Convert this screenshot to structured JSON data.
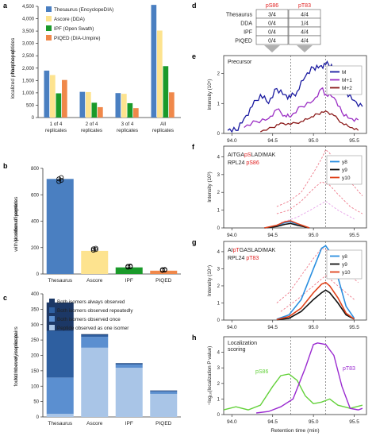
{
  "colors": {
    "thesaurus": "#4a7fc1",
    "ascore": "#fde38f",
    "ipf": "#1a9a2a",
    "piqed": "#f0884a",
    "c_always": "#1c3866",
    "c_repeated": "#2e5fa0",
    "c_once": "#5b8fd0",
    "c_one": "#a9c5e7",
    "m": "#1a1aa0",
    "m1": "#9b2fc4",
    "m2": "#8b1a1a",
    "y8": "#2b8fe0",
    "y9": "#111111",
    "y10": "#e0421b",
    "ps86": "#63d13a",
    "pt83": "#9a2ad0",
    "site_red": "#e02020"
  },
  "panels": {
    "a": "a",
    "b": "b",
    "c": "c",
    "d": "d",
    "e": "e",
    "f": "f",
    "g": "g",
    "h": "h"
  },
  "chart_data": [
    {
      "id": "a",
      "type": "bar",
      "ylabel": "Number of\nlocalized phosphopeptides",
      "ylim": [
        0,
        4500
      ],
      "yticks": [
        "0",
        "500",
        "1,000",
        "1,500",
        "2,000",
        "2,500",
        "3,000",
        "3,500",
        "4,000",
        "4,500"
      ],
      "categories": [
        "1 of 4\nreplicates",
        "2 of 4\nreplicates",
        "3 of 4\nreplicates",
        "All\nreplicates"
      ],
      "series": [
        {
          "name": "Thesaurus (EncyclopeDIA)",
          "values": [
            1900,
            1040,
            990,
            4560
          ]
        },
        {
          "name": "Ascore (DDA)",
          "values": [
            1720,
            1030,
            960,
            3520
          ]
        },
        {
          "name": "IPF (Open Swath)",
          "values": [
            980,
            600,
            580,
            2080
          ]
        },
        {
          "name": "PIQED (DIA-Umpire)",
          "values": [
            1520,
            420,
            380,
            1020
          ]
        }
      ],
      "legend": "top-left"
    },
    {
      "id": "b",
      "type": "bar",
      "ylabel": "Number of peptides\nwith positional isomers",
      "ylim": [
        0,
        800
      ],
      "yticks": [
        "0",
        "200",
        "400",
        "600",
        "800"
      ],
      "categories": [
        "Thesaurus",
        "Ascore",
        "IPF",
        "PIQED"
      ],
      "values": [
        720,
        175,
        50,
        25
      ],
      "points": [
        [
          700,
          710,
          720,
          730
        ],
        [
          180,
          185,
          190,
          195
        ],
        [
          52,
          55,
          58,
          60
        ],
        [
          28,
          30,
          32,
          34
        ]
      ]
    },
    {
      "id": "c",
      "type": "bar",
      "ylabel": "Number of isomer pairs\nfound in every replicate",
      "ylim": [
        0,
        400
      ],
      "yticks": [
        "0",
        "50",
        "100",
        "150",
        "200",
        "250",
        "300",
        "350",
        "400"
      ],
      "categories": [
        "Thesaurus",
        "Ascore",
        "IPF",
        "PIQED"
      ],
      "series": [
        {
          "name": "Peptide observed as one isomer",
          "values": [
            10,
            225,
            160,
            75
          ]
        },
        {
          "name": "Both isomers observed once",
          "values": [
            118,
            35,
            10,
            7
          ]
        },
        {
          "name": "Both isomers observed repeatedly",
          "values": [
            152,
            7,
            4,
            3
          ]
        },
        {
          "name": "Both isomers always observed",
          "values": [
            92,
            2,
            1,
            1
          ]
        }
      ],
      "legend": "top-left"
    },
    {
      "id": "d",
      "type": "table",
      "columns": [
        "pS86",
        "pT83"
      ],
      "rows": [
        {
          "label": "Thesaurus",
          "values": [
            "3/4",
            "4/4"
          ]
        },
        {
          "label": "DDA",
          "values": [
            "0/4",
            "1/4"
          ]
        },
        {
          "label": "IPF",
          "values": [
            "0/4",
            "4/4"
          ]
        },
        {
          "label": "PIQED",
          "values": [
            "0/4",
            "4/4"
          ]
        }
      ]
    },
    {
      "id": "e",
      "type": "line",
      "annotation": "Precursor",
      "ylabel": "Intensity (10⁵)",
      "yticks": [
        "0",
        "1",
        "2"
      ],
      "ylim": [
        0,
        2.6
      ],
      "xlim": [
        93.9,
        95.65
      ],
      "xticks": [
        "94.0",
        "94.5",
        "95.0",
        "95.5"
      ],
      "xtick_values": [
        94.0,
        94.5,
        95.0,
        95.5
      ],
      "vlines": [
        94.72,
        95.15
      ],
      "series": [
        {
          "name": "M",
          "x": [
            93.95,
            94.05,
            94.15,
            94.25,
            94.35,
            94.45,
            94.55,
            94.65,
            94.72,
            94.8,
            94.9,
            95.0,
            95.08,
            95.15,
            95.22,
            95.3,
            95.4,
            95.5,
            95.6
          ],
          "y": [
            0.1,
            0.1,
            0.5,
            0.9,
            1.3,
            1.0,
            1.5,
            1.3,
            1.2,
            1.4,
            1.9,
            2.2,
            2.25,
            2.3,
            2.3,
            1.9,
            1.4,
            1.1,
            0.9
          ]
        },
        {
          "name": "M+1",
          "x": [
            94.15,
            94.3,
            94.45,
            94.55,
            94.65,
            94.72,
            94.85,
            95.0,
            95.1,
            95.15,
            95.25,
            95.35,
            95.45,
            95.55
          ],
          "y": [
            0.2,
            0.4,
            0.5,
            0.8,
            0.6,
            0.55,
            0.9,
            1.1,
            1.5,
            1.3,
            1.2,
            0.7,
            0.5,
            0.45
          ]
        },
        {
          "name": "M+2",
          "x": [
            94.35,
            94.5,
            94.6,
            94.72,
            94.85,
            94.95,
            95.05,
            95.15,
            95.25,
            95.35,
            95.45,
            95.55
          ],
          "y": [
            0.05,
            0.2,
            0.35,
            0.3,
            0.4,
            0.5,
            0.65,
            0.75,
            0.6,
            0.35,
            0.2,
            0.1
          ]
        }
      ]
    },
    {
      "id": "f",
      "type": "line",
      "peptide": [
        "AITGA",
        "pS",
        "LADIMAK"
      ],
      "protein": [
        "RPL24 ",
        "pS86"
      ],
      "ylabel": "Intensity (10³)",
      "yticks": [
        "0",
        "1",
        "2",
        "3",
        "4"
      ],
      "ylim": [
        0,
        4.6
      ],
      "xlim": [
        93.9,
        95.65
      ],
      "xticks": [
        "94.0",
        "94.5",
        "95.0",
        "95.5"
      ],
      "xtick_values": [
        94.0,
        94.5,
        95.0,
        95.5
      ],
      "vlines": [
        94.72,
        95.15
      ],
      "series": [
        {
          "name": "y8",
          "x": [
            94.4,
            94.55,
            94.65,
            94.72,
            94.8,
            94.95
          ],
          "y": [
            0,
            0.1,
            0.3,
            0.35,
            0.2,
            0
          ]
        },
        {
          "name": "y9",
          "x": [
            94.4,
            94.55,
            94.65,
            94.72,
            94.8,
            94.95
          ],
          "y": [
            0,
            0.08,
            0.2,
            0.25,
            0.15,
            0
          ]
        },
        {
          "name": "y10",
          "x": [
            94.4,
            94.55,
            94.65,
            94.72,
            94.8,
            94.95
          ],
          "y": [
            0,
            0.15,
            0.35,
            0.4,
            0.25,
            0
          ]
        }
      ]
    },
    {
      "id": "g",
      "type": "line",
      "peptide": [
        "AI",
        "pT",
        "GASLADIMAK"
      ],
      "protein": [
        "RPL24 ",
        "pT83"
      ],
      "ylabel": "Intensity (10⁴)",
      "yticks": [
        "0",
        "1",
        "2",
        "3",
        "4"
      ],
      "ylim": [
        0,
        4.6
      ],
      "xlim": [
        93.9,
        95.65
      ],
      "xticks": [
        "94.0",
        "94.5",
        "95.0",
        "95.5"
      ],
      "xtick_values": [
        94.0,
        94.5,
        95.0,
        95.5
      ],
      "vlines": [
        94.72,
        95.15
      ],
      "series": [
        {
          "name": "y8",
          "x": [
            94.55,
            94.7,
            94.85,
            95.0,
            95.1,
            95.15,
            95.2,
            95.3,
            95.4,
            95.5
          ],
          "y": [
            0.05,
            0.3,
            1.2,
            3.0,
            4.2,
            4.35,
            4.0,
            2.5,
            0.8,
            0.1
          ]
        },
        {
          "name": "y9",
          "x": [
            94.55,
            94.7,
            94.85,
            95.0,
            95.1,
            95.15,
            95.2,
            95.3,
            95.4,
            95.5
          ],
          "y": [
            0.02,
            0.1,
            0.5,
            1.2,
            1.6,
            1.75,
            1.6,
            1.0,
            0.3,
            0.05
          ]
        },
        {
          "name": "y10",
          "x": [
            94.55,
            94.7,
            94.85,
            95.0,
            95.1,
            95.15,
            95.2,
            95.3,
            95.4,
            95.5
          ],
          "y": [
            0.03,
            0.2,
            0.7,
            1.6,
            2.1,
            2.2,
            2.0,
            1.3,
            0.4,
            0.05
          ]
        }
      ]
    },
    {
      "id": "h",
      "type": "line",
      "annotation": "Localization\nscoring",
      "ylabel": "−log₁₀(localization P value)",
      "yticks": [
        "0",
        "1",
        "2",
        "3",
        "4"
      ],
      "ylim": [
        0,
        5
      ],
      "xlim": [
        93.9,
        95.65
      ],
      "xticks": [
        "94.0",
        "94.5",
        "95.0",
        "95.5"
      ],
      "xtick_values": [
        94.0,
        94.5,
        95.0,
        95.5
      ],
      "xlabel": "Retention time (min)",
      "vlines": [
        94.72,
        95.15
      ],
      "labels": [
        "pS86",
        "pT83"
      ],
      "series": [
        {
          "name": "pS86",
          "x": [
            93.9,
            94.05,
            94.2,
            94.35,
            94.5,
            94.6,
            94.7,
            94.8,
            94.9,
            95.0,
            95.1,
            95.2,
            95.3,
            95.45,
            95.6
          ],
          "y": [
            0.3,
            0.5,
            0.3,
            0.6,
            1.8,
            2.5,
            2.6,
            2.2,
            1.2,
            0.7,
            0.8,
            1.0,
            0.6,
            0.4,
            0.6
          ]
        },
        {
          "name": "pT83",
          "x": [
            94.3,
            94.45,
            94.6,
            94.75,
            94.9,
            95.0,
            95.05,
            95.15,
            95.25,
            95.35,
            95.45,
            95.55,
            95.6
          ],
          "y": [
            0.1,
            0.2,
            0.5,
            1.0,
            3.0,
            4.5,
            4.6,
            4.5,
            3.8,
            1.8,
            0.4,
            0.3,
            0.4
          ]
        }
      ]
    }
  ]
}
